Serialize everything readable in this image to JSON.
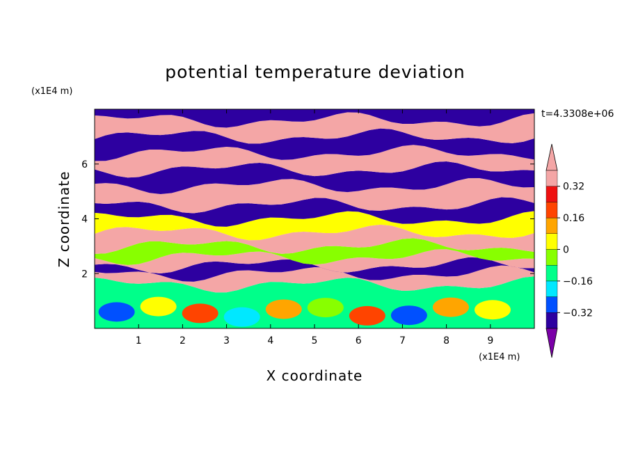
{
  "chart_data": {
    "type": "heatmap",
    "title": "potential temperature deviation",
    "xlabel": "X coordinate",
    "ylabel": "Z coordinate",
    "x_unit": "(x1E4 m)",
    "y_unit": "(x1E4 m)",
    "time_label": "t=4.3308e+06",
    "x_range": [
      0,
      10
    ],
    "y_range": [
      0,
      8
    ],
    "x_ticks": [
      1,
      2,
      3,
      4,
      5,
      6,
      7,
      8,
      9
    ],
    "y_ticks": [
      2,
      4,
      6
    ],
    "colorbar": {
      "tick_values": [
        0.32,
        0.16,
        0,
        -0.16,
        -0.32
      ],
      "tick_labels": [
        "0.32",
        "0.16",
        "0",
        "−0.16",
        "−0.32"
      ],
      "levels": [
        -0.4,
        -0.32,
        -0.24,
        -0.16,
        -0.08,
        0.0,
        0.08,
        0.16,
        0.24,
        0.32,
        0.4
      ],
      "colors": [
        "#7b00a8",
        "#2d00a0",
        "#0050ff",
        "#00e8ff",
        "#00ff8a",
        "#88ff00",
        "#ffff00",
        "#ffa500",
        "#ff4400",
        "#ee1010",
        "#f4a6a6"
      ],
      "extend": "both"
    },
    "bands": [
      {
        "z_bottom": 0.0,
        "z_top": 1.6,
        "value": -0.12,
        "description_value_range": [
          -0.32,
          0.24
        ]
      },
      {
        "z_bottom": 1.6,
        "z_top": 2.0,
        "value": 0.4
      },
      {
        "z_bottom": 2.0,
        "z_top": 2.3,
        "value": -0.4
      },
      {
        "z_bottom": 2.3,
        "z_top": 2.6,
        "value": 0.4
      },
      {
        "z_bottom": 2.6,
        "z_top": 3.0,
        "value": -0.08
      },
      {
        "z_bottom": 3.0,
        "z_top": 3.5,
        "value": 0.4
      },
      {
        "z_bottom": 3.5,
        "z_top": 4.0,
        "value": 0.0
      },
      {
        "z_bottom": 4.0,
        "z_top": 4.5,
        "value": -0.4
      },
      {
        "z_bottom": 4.5,
        "z_top": 5.2,
        "value": 0.4
      },
      {
        "z_bottom": 5.2,
        "z_top": 5.8,
        "value": -0.4
      },
      {
        "z_bottom": 5.8,
        "z_top": 6.4,
        "value": 0.4
      },
      {
        "z_bottom": 6.4,
        "z_top": 7.0,
        "value": -0.4
      },
      {
        "z_bottom": 7.0,
        "z_top": 7.6,
        "value": 0.4
      },
      {
        "z_bottom": 7.6,
        "z_top": 8.0,
        "value": -0.4
      }
    ]
  }
}
